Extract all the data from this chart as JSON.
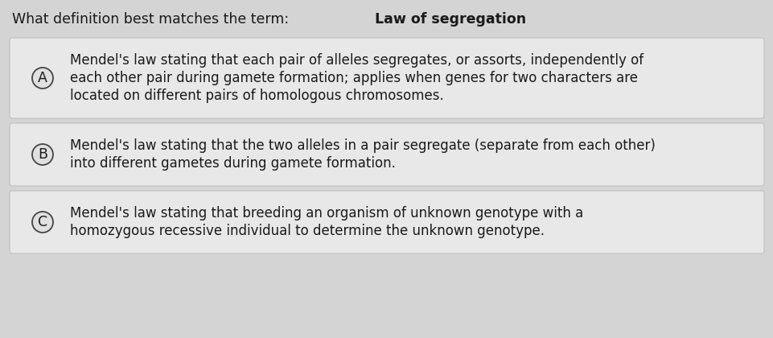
{
  "title_normal": "What definition best matches the term: ",
  "title_bold": "Law of segregation",
  "outer_bg": "#d4d4d4",
  "card_color": "#e8e8e8",
  "card_edge_color": "#c0c0c0",
  "options": [
    {
      "label": "A",
      "lines": [
        "Mendel's law stating that each pair of alleles segregates, or assorts, independently of",
        "each other pair during gamete formation; applies when genes for two characters are",
        "located on different pairs of homologous chromosomes."
      ]
    },
    {
      "label": "B",
      "lines": [
        "Mendel's law stating that the two alleles in a pair segregate (separate from each other)",
        "into different gametes during gamete formation."
      ]
    },
    {
      "label": "C",
      "lines": [
        "Mendel's law stating that breeding an organism of unknown genotype with a",
        "homozygous recessive individual to determine the unknown genotype."
      ]
    }
  ],
  "title_fontsize": 12.5,
  "option_fontsize": 12.0,
  "label_fontsize": 12.5,
  "text_color": "#1a1a1a",
  "circle_edge_color": "#444444",
  "circle_face_color": "#e0e0e0"
}
